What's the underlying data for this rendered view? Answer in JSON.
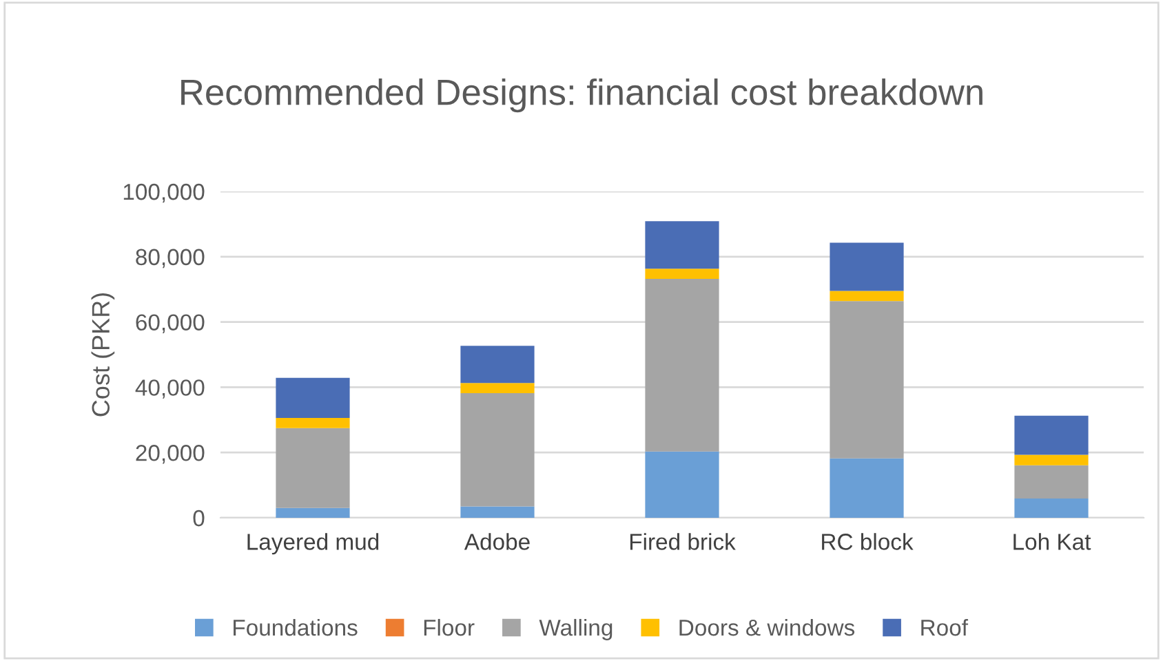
{
  "chart_data": {
    "type": "bar",
    "stacked": true,
    "title": "Recommended Designs: financial cost breakdown",
    "ylabel": "Cost (PKR)",
    "categories": [
      "Layered mud",
      "Adobe",
      "Fired brick",
      "RC block",
      "Loh Kat"
    ],
    "series": [
      {
        "name": "Foundations",
        "color": "#6a9fd6",
        "values": [
          3000,
          3500,
          20300,
          18200,
          5900
        ]
      },
      {
        "name": "Floor",
        "color": "#ed7d31",
        "values": [
          0,
          0,
          0,
          0,
          0
        ]
      },
      {
        "name": "Walling",
        "color": "#a5a5a5",
        "values": [
          24500,
          34700,
          52900,
          48200,
          10200
        ]
      },
      {
        "name": "Doors & windows",
        "color": "#ffc000",
        "values": [
          3100,
          3100,
          3100,
          3100,
          3200
        ]
      },
      {
        "name": "Roof",
        "color": "#4a6db5",
        "values": [
          12300,
          11400,
          14600,
          14800,
          12000
        ]
      }
    ],
    "ylim": [
      0,
      100000
    ],
    "yticks": [
      {
        "value": 0,
        "label": "0"
      },
      {
        "value": 20000,
        "label": "20,000"
      },
      {
        "value": 40000,
        "label": "40,000"
      },
      {
        "value": 60000,
        "label": "60,000"
      },
      {
        "value": 80000,
        "label": "80,000"
      },
      {
        "value": 100000,
        "label": "100,000"
      }
    ],
    "grid": "y",
    "legend": "bottom"
  }
}
